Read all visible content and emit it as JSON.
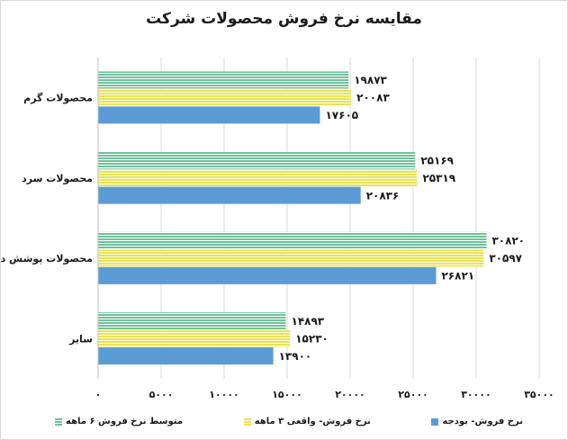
{
  "chart_data": {
    "type": "bar",
    "orientation": "horizontal",
    "title": "مقایسه نرخ فروش محصولات شرکت",
    "categories": [
      "محصولات گرم",
      "محصولات سرد",
      "محصولات پوشش دار",
      "سایر"
    ],
    "series": [
      {
        "name": "متوسط نرخ فروش ۶ ماهه",
        "color": "#70c09a",
        "pattern": "horizontal-stripes",
        "values": [
          19873,
          25169,
          30820,
          14893
        ],
        "labels": [
          "۱۹۸۷۳",
          "۲۵۱۶۹",
          "۳۰۸۲۰",
          "۱۴۸۹۳"
        ]
      },
      {
        "name": "نرخ فروش- واقعی ۳ ماهه",
        "color": "#e8e35a",
        "pattern": "horizontal-stripes",
        "values": [
          20083,
          25319,
          30597,
          15230
        ],
        "labels": [
          "۲۰۰۸۳",
          "۲۵۳۱۹",
          "۳۰۵۹۷",
          "۱۵۲۳۰"
        ]
      },
      {
        "name": "نرخ فروش- بودجه",
        "color": "#5b9bd5",
        "pattern": "solid",
        "values": [
          17605,
          20836,
          26821,
          13900
        ],
        "labels": [
          "۱۷۶۰۵",
          "۲۰۸۳۶",
          "۲۶۸۲۱",
          "۱۳۹۰۰"
        ]
      }
    ],
    "xlim": [
      0,
      35000
    ],
    "xticks": [
      0,
      5000,
      10000,
      15000,
      20000,
      25000,
      30000,
      35000
    ],
    "xtick_labels": [
      "۰",
      "۵۰۰۰",
      "۱۰۰۰۰",
      "۱۵۰۰۰",
      "۲۰۰۰۰",
      "۲۵۰۰۰",
      "۳۰۰۰۰",
      "۳۵۰۰۰"
    ],
    "grid": true,
    "legend_position": "bottom"
  }
}
